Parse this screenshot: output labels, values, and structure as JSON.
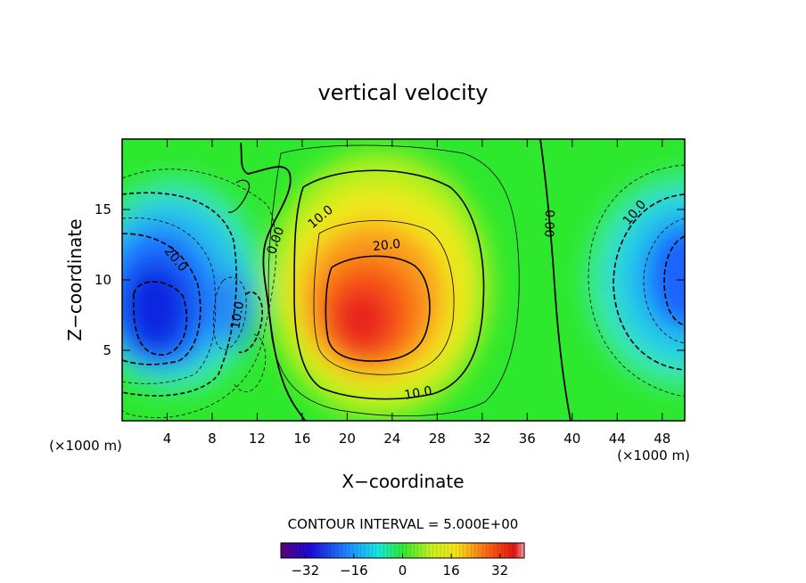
{
  "chart_data": {
    "type": "heatmap",
    "title": "vertical velocity",
    "xlabel": "X−coordinate",
    "ylabel": "Z−coordinate",
    "x_unit_left": "(×1000 m)",
    "x_unit_right": "(×1000 m)",
    "xlim": [
      0,
      50
    ],
    "ylim": [
      0,
      20
    ],
    "x_ticks": [
      4,
      8,
      12,
      16,
      20,
      24,
      28,
      32,
      36,
      40,
      44,
      48
    ],
    "y_ticks": [
      5,
      10,
      15
    ],
    "contour_interval_text": "CONTOUR INTERVAL = 5.000E+00",
    "colorbar": {
      "range": [
        -40,
        40
      ],
      "ticks": [
        -32,
        -16,
        0,
        16,
        32
      ]
    },
    "contour_labels": [
      {
        "text": "20.0",
        "x": 4.8,
        "y": 11.5,
        "rotate": 50
      },
      {
        "text": "10.0",
        "x": 10.2,
        "y": 7.5,
        "rotate": -80
      },
      {
        "text": "0.00",
        "x": 13.6,
        "y": 12.8,
        "rotate": -70
      },
      {
        "text": "10.0",
        "x": 17.6,
        "y": 14.5,
        "rotate": -40
      },
      {
        "text": "20.0",
        "x": 23.5,
        "y": 12.5,
        "rotate": -6
      },
      {
        "text": "10.0",
        "x": 26.3,
        "y": 2.0,
        "rotate": -10
      },
      {
        "text": "0.00",
        "x": 38.0,
        "y": 14.0,
        "rotate": 92
      },
      {
        "text": "10.0",
        "x": 45.5,
        "y": 14.8,
        "rotate": -50
      }
    ],
    "extrema": [
      {
        "value": -34,
        "x": 3.5,
        "y": 8.3,
        "kind": "min"
      },
      {
        "value": 32,
        "x": 22.0,
        "y": 7.4,
        "kind": "max"
      },
      {
        "value": -30,
        "x": 49.5,
        "y": 10.5,
        "kind": "min"
      }
    ]
  }
}
